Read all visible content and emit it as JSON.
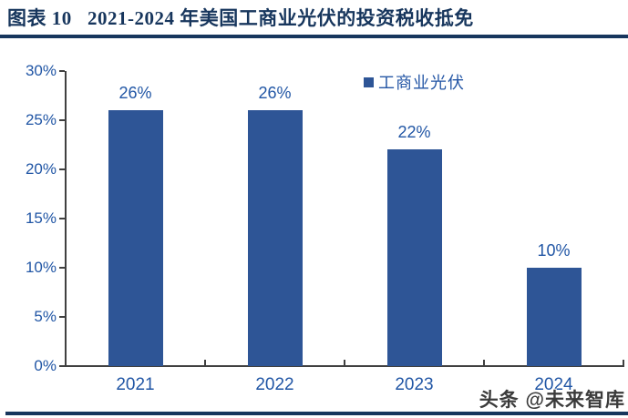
{
  "title": "图表 10   2021-2024 年美国工商业光伏的投资税收抵免",
  "legend": {
    "label": "工商业光伏",
    "marker_color": "#2E5596"
  },
  "watermark": "头条 @未来智库",
  "colors": {
    "title_navy": "#17365D",
    "bar_fill": "#2E5596",
    "label_blue": "#2156A5",
    "axis_gray": "#404040"
  },
  "chart_data": {
    "type": "bar",
    "title": "图表 10   2021-2024 年美国工商业光伏的投资税收抵免",
    "series_name": "工商业光伏",
    "categories": [
      "2021",
      "2022",
      "2023",
      "2024"
    ],
    "values": [
      26,
      26,
      22,
      10
    ],
    "data_labels": [
      "26%",
      "26%",
      "22%",
      "10%"
    ],
    "xlabel": "",
    "ylabel": "",
    "ylim": [
      0,
      30
    ],
    "ytick_step": 5,
    "ytick_labels": [
      "0%",
      "5%",
      "10%",
      "15%",
      "20%",
      "25%",
      "30%"
    ],
    "grid": false,
    "legend_position": "top-right-inside"
  }
}
